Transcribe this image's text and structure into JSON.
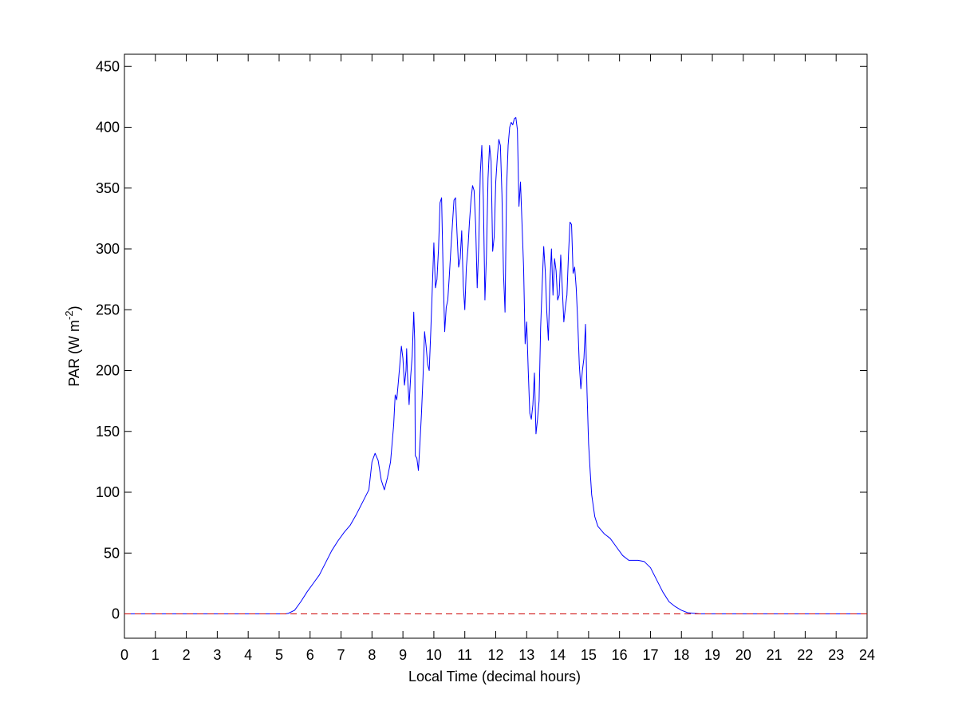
{
  "chart_data": {
    "type": "line",
    "xlabel": "Local Time (decimal hours)",
    "ylabel": {
      "prefix": "PAR (W m",
      "superscript": "-2",
      "suffix": ")"
    },
    "xlim": [
      0,
      24
    ],
    "ylim": [
      -20,
      460
    ],
    "xticks": [
      "0",
      "1",
      "2",
      "3",
      "4",
      "5",
      "6",
      "7",
      "8",
      "9",
      "10",
      "11",
      "12",
      "13",
      "14",
      "15",
      "16",
      "17",
      "18",
      "19",
      "20",
      "21",
      "22",
      "23",
      "24"
    ],
    "yticks": [
      "0",
      "50",
      "100",
      "150",
      "200",
      "250",
      "300",
      "350",
      "400",
      "450"
    ],
    "grid": false,
    "series": [
      {
        "color": "#0000ff",
        "style": "solid",
        "points": [
          [
            0,
            0
          ],
          [
            5.2,
            0
          ],
          [
            5.3,
            0.5
          ],
          [
            5.5,
            3
          ],
          [
            5.7,
            10
          ],
          [
            5.9,
            18
          ],
          [
            6.1,
            25
          ],
          [
            6.3,
            32
          ],
          [
            6.5,
            42
          ],
          [
            6.7,
            52
          ],
          [
            6.9,
            60
          ],
          [
            7.1,
            67
          ],
          [
            7.3,
            73
          ],
          [
            7.5,
            82
          ],
          [
            7.7,
            92
          ],
          [
            7.8,
            97
          ],
          [
            7.9,
            102
          ],
          [
            8.0,
            125
          ],
          [
            8.1,
            132
          ],
          [
            8.2,
            126
          ],
          [
            8.3,
            110
          ],
          [
            8.4,
            102
          ],
          [
            8.5,
            112
          ],
          [
            8.6,
            125
          ],
          [
            8.7,
            155
          ],
          [
            8.75,
            180
          ],
          [
            8.8,
            176
          ],
          [
            8.85,
            190
          ],
          [
            8.9,
            205
          ],
          [
            8.95,
            220
          ],
          [
            9.0,
            210
          ],
          [
            9.05,
            188
          ],
          [
            9.1,
            200
          ],
          [
            9.12,
            218
          ],
          [
            9.15,
            195
          ],
          [
            9.2,
            172
          ],
          [
            9.25,
            195
          ],
          [
            9.3,
            212
          ],
          [
            9.35,
            248
          ],
          [
            9.38,
            225
          ],
          [
            9.4,
            130
          ],
          [
            9.45,
            128
          ],
          [
            9.5,
            118
          ],
          [
            9.55,
            140
          ],
          [
            9.6,
            165
          ],
          [
            9.65,
            195
          ],
          [
            9.7,
            232
          ],
          [
            9.75,
            220
          ],
          [
            9.8,
            205
          ],
          [
            9.85,
            200
          ],
          [
            9.9,
            232
          ],
          [
            9.95,
            268
          ],
          [
            10.0,
            305
          ],
          [
            10.05,
            268
          ],
          [
            10.1,
            275
          ],
          [
            10.15,
            300
          ],
          [
            10.2,
            338
          ],
          [
            10.25,
            342
          ],
          [
            10.3,
            280
          ],
          [
            10.35,
            232
          ],
          [
            10.4,
            252
          ],
          [
            10.45,
            258
          ],
          [
            10.5,
            278
          ],
          [
            10.55,
            300
          ],
          [
            10.6,
            320
          ],
          [
            10.65,
            340
          ],
          [
            10.7,
            342
          ],
          [
            10.75,
            312
          ],
          [
            10.8,
            285
          ],
          [
            10.85,
            292
          ],
          [
            10.9,
            315
          ],
          [
            10.95,
            270
          ],
          [
            11.0,
            250
          ],
          [
            11.05,
            285
          ],
          [
            11.1,
            300
          ],
          [
            11.15,
            322
          ],
          [
            11.2,
            340
          ],
          [
            11.25,
            352
          ],
          [
            11.3,
            348
          ],
          [
            11.35,
            320
          ],
          [
            11.4,
            268
          ],
          [
            11.45,
            302
          ],
          [
            11.5,
            362
          ],
          [
            11.55,
            385
          ],
          [
            11.6,
            340
          ],
          [
            11.65,
            258
          ],
          [
            11.7,
            295
          ],
          [
            11.75,
            358
          ],
          [
            11.8,
            385
          ],
          [
            11.85,
            372
          ],
          [
            11.9,
            298
          ],
          [
            11.95,
            310
          ],
          [
            12.0,
            355
          ],
          [
            12.05,
            375
          ],
          [
            12.1,
            390
          ],
          [
            12.15,
            385
          ],
          [
            12.2,
            345
          ],
          [
            12.25,
            280
          ],
          [
            12.3,
            248
          ],
          [
            12.35,
            350
          ],
          [
            12.4,
            385
          ],
          [
            12.45,
            400
          ],
          [
            12.5,
            404
          ],
          [
            12.55,
            402
          ],
          [
            12.6,
            407
          ],
          [
            12.65,
            408
          ],
          [
            12.7,
            398
          ],
          [
            12.75,
            335
          ],
          [
            12.8,
            355
          ],
          [
            12.85,
            320
          ],
          [
            12.9,
            285
          ],
          [
            12.95,
            222
          ],
          [
            13.0,
            240
          ],
          [
            13.05,
            200
          ],
          [
            13.1,
            165
          ],
          [
            13.15,
            160
          ],
          [
            13.2,
            172
          ],
          [
            13.25,
            198
          ],
          [
            13.3,
            148
          ],
          [
            13.35,
            160
          ],
          [
            13.4,
            175
          ],
          [
            13.45,
            235
          ],
          [
            13.5,
            270
          ],
          [
            13.55,
            302
          ],
          [
            13.6,
            282
          ],
          [
            13.65,
            248
          ],
          [
            13.7,
            225
          ],
          [
            13.75,
            272
          ],
          [
            13.8,
            300
          ],
          [
            13.85,
            262
          ],
          [
            13.9,
            292
          ],
          [
            13.95,
            282
          ],
          [
            14.0,
            258
          ],
          [
            14.05,
            262
          ],
          [
            14.1,
            295
          ],
          [
            14.15,
            268
          ],
          [
            14.2,
            240
          ],
          [
            14.25,
            252
          ],
          [
            14.3,
            262
          ],
          [
            14.35,
            295
          ],
          [
            14.4,
            322
          ],
          [
            14.45,
            320
          ],
          [
            14.5,
            280
          ],
          [
            14.55,
            285
          ],
          [
            14.6,
            268
          ],
          [
            14.65,
            240
          ],
          [
            14.7,
            205
          ],
          [
            14.75,
            185
          ],
          [
            14.8,
            200
          ],
          [
            14.85,
            210
          ],
          [
            14.9,
            238
          ],
          [
            14.95,
            182
          ],
          [
            15.0,
            140
          ],
          [
            15.05,
            118
          ],
          [
            15.1,
            98
          ],
          [
            15.2,
            80
          ],
          [
            15.3,
            72
          ],
          [
            15.5,
            66
          ],
          [
            15.7,
            62
          ],
          [
            15.9,
            55
          ],
          [
            16.1,
            48
          ],
          [
            16.3,
            44
          ],
          [
            16.6,
            44
          ],
          [
            16.8,
            43
          ],
          [
            17.0,
            38
          ],
          [
            17.2,
            28
          ],
          [
            17.4,
            18
          ],
          [
            17.6,
            10
          ],
          [
            17.8,
            6
          ],
          [
            18.0,
            3
          ],
          [
            18.2,
            1
          ],
          [
            18.6,
            0
          ],
          [
            24,
            0
          ]
        ]
      },
      {
        "color": "#cc0000",
        "style": "dashed",
        "points": [
          [
            0,
            0
          ],
          [
            24,
            0
          ]
        ]
      }
    ]
  }
}
